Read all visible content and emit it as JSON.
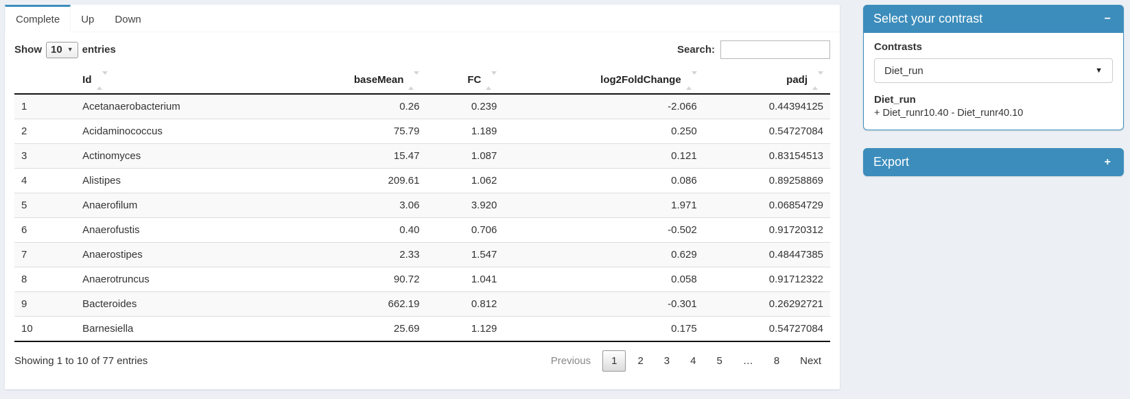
{
  "page": {
    "background": "#ecf0f5",
    "accent": "#3c8dbc"
  },
  "tabs": [
    {
      "label": "Complete",
      "active": true
    },
    {
      "label": "Up",
      "active": false
    },
    {
      "label": "Down",
      "active": false
    }
  ],
  "toolbar": {
    "show_label": "Show",
    "entries_value": "10",
    "entries_label": "entries",
    "search_label": "Search:",
    "search_value": ""
  },
  "table": {
    "columns": [
      {
        "label": "",
        "sortable": false,
        "align": "left"
      },
      {
        "label": "Id",
        "sortable": true,
        "align": "left"
      },
      {
        "label": "baseMean",
        "sortable": true,
        "align": "right"
      },
      {
        "label": "FC",
        "sortable": true,
        "align": "right"
      },
      {
        "label": "log2FoldChange",
        "sortable": true,
        "align": "right"
      },
      {
        "label": "padj",
        "sortable": true,
        "align": "right"
      }
    ],
    "rows": [
      {
        "num": "1",
        "id": "Acetanaerobacterium",
        "baseMean": "0.26",
        "fc": "0.239",
        "log2fc": "-2.066",
        "padj": "0.44394125"
      },
      {
        "num": "2",
        "id": "Acidaminococcus",
        "baseMean": "75.79",
        "fc": "1.189",
        "log2fc": "0.250",
        "padj": "0.54727084"
      },
      {
        "num": "3",
        "id": "Actinomyces",
        "baseMean": "15.47",
        "fc": "1.087",
        "log2fc": "0.121",
        "padj": "0.83154513"
      },
      {
        "num": "4",
        "id": "Alistipes",
        "baseMean": "209.61",
        "fc": "1.062",
        "log2fc": "0.086",
        "padj": "0.89258869"
      },
      {
        "num": "5",
        "id": "Anaerofilum",
        "baseMean": "3.06",
        "fc": "3.920",
        "log2fc": "1.971",
        "padj": "0.06854729"
      },
      {
        "num": "6",
        "id": "Anaerofustis",
        "baseMean": "0.40",
        "fc": "0.706",
        "log2fc": "-0.502",
        "padj": "0.91720312"
      },
      {
        "num": "7",
        "id": "Anaerostipes",
        "baseMean": "2.33",
        "fc": "1.547",
        "log2fc": "0.629",
        "padj": "0.48447385"
      },
      {
        "num": "8",
        "id": "Anaerotruncus",
        "baseMean": "90.72",
        "fc": "1.041",
        "log2fc": "0.058",
        "padj": "0.91712322"
      },
      {
        "num": "9",
        "id": "Bacteroides",
        "baseMean": "662.19",
        "fc": "0.812",
        "log2fc": "-0.301",
        "padj": "0.26292721"
      },
      {
        "num": "10",
        "id": "Barnesiella",
        "baseMean": "25.69",
        "fc": "1.129",
        "log2fc": "0.175",
        "padj": "0.54727084"
      }
    ]
  },
  "footer": {
    "info": "Showing 1 to 10 of 77 entries"
  },
  "pagination": {
    "previous": "Previous",
    "pages": [
      "1",
      "2",
      "3",
      "4",
      "5",
      "…",
      "8"
    ],
    "active_page": "1",
    "next": "Next"
  },
  "contrast_panel": {
    "title": "Select your contrast",
    "collapse_icon": "−",
    "contrasts_label": "Contrasts",
    "selected_contrast": "Diet_run",
    "select_caret": "▼",
    "contrast_name": "Diet_run",
    "contrast_formula": "+ Diet_runr10.40 - Diet_runr40.10"
  },
  "export_panel": {
    "title": "Export",
    "expand_icon": "+"
  }
}
